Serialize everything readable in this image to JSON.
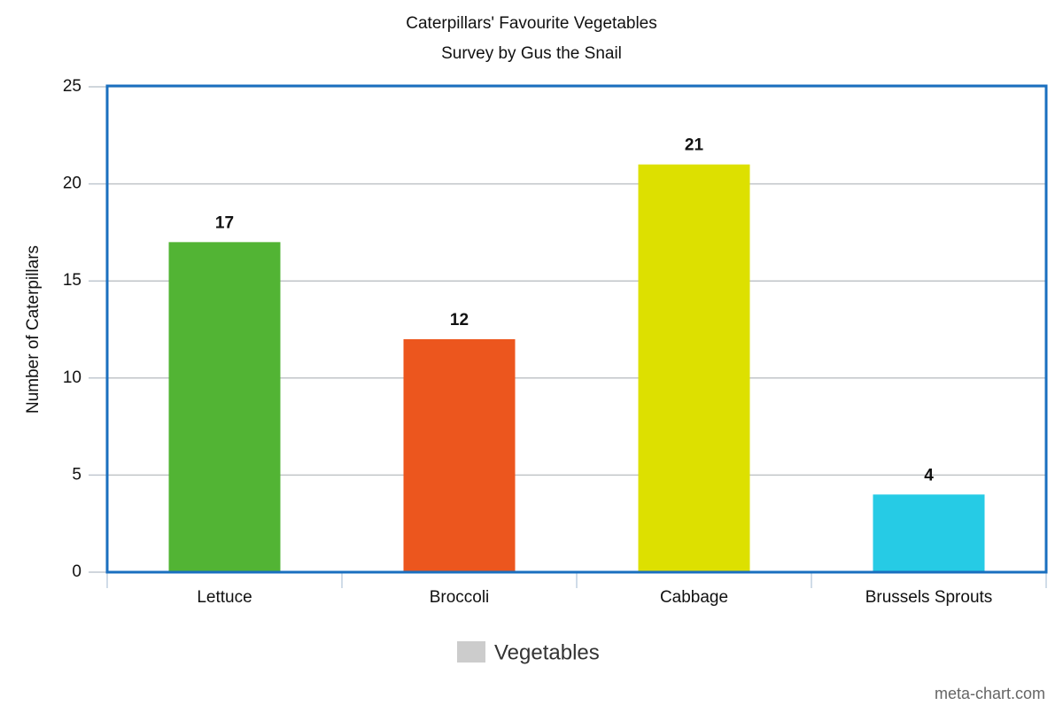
{
  "chart_data": {
    "type": "bar",
    "title": "Caterpillars' Favourite Vegetables",
    "subtitle": "Survey by Gus the Snail",
    "y_label": "Number of Caterpillars",
    "categories": [
      "Lettuce",
      "Broccoli",
      "Cabbage",
      "Brussels Sprouts"
    ],
    "series": [
      {
        "name": "Vegetables",
        "color": "#cccccc",
        "values": [
          17,
          12,
          21,
          4
        ]
      }
    ],
    "bar_colors": [
      "#52b434",
      "#ec561e",
      "#dde000",
      "#26cbe5"
    ],
    "ylim": [
      0,
      25
    ],
    "yticks": [
      0,
      5,
      10,
      15,
      20,
      25
    ],
    "grid": true,
    "legend": "bottom",
    "watermark": "meta-chart.com"
  }
}
